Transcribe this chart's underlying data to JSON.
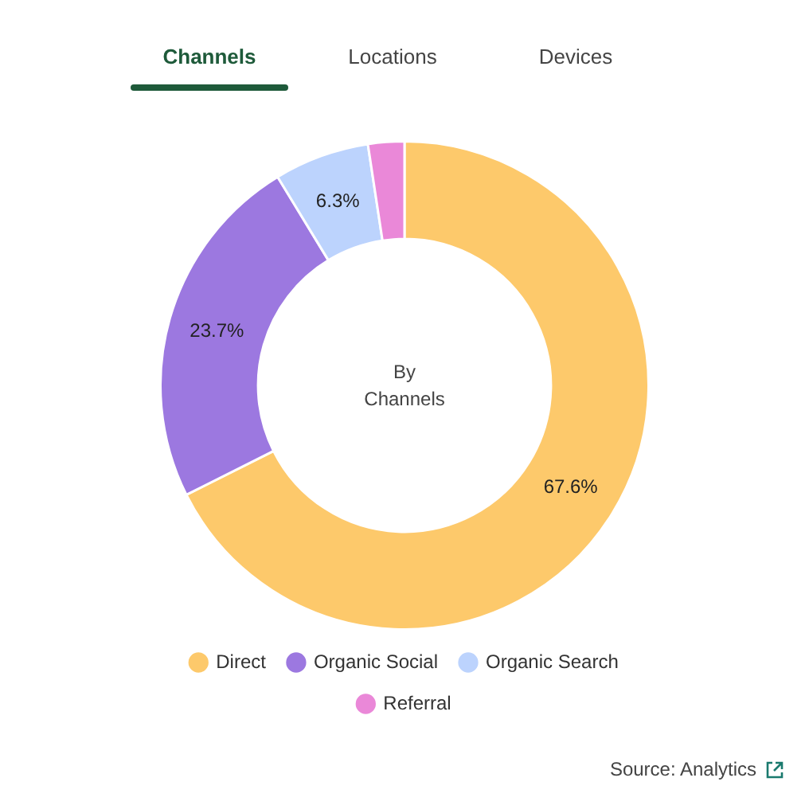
{
  "chart_data": {
    "type": "donut",
    "title": "By Channels",
    "categories": [
      "Direct",
      "Organic Social",
      "Organic Search",
      "Referral"
    ],
    "values": [
      67.6,
      23.7,
      6.3,
      2.4
    ],
    "colors": [
      "#fdc96b",
      "#9c78e0",
      "#bcd3fd",
      "#ea88d8"
    ],
    "value_labels": [
      "67.6%",
      "23.7%",
      "6.3%",
      null
    ],
    "legend": "bottom",
    "annotations": [
      "Channels",
      "Locations",
      "Devices",
      "Source: Analytics"
    ]
  }
}
